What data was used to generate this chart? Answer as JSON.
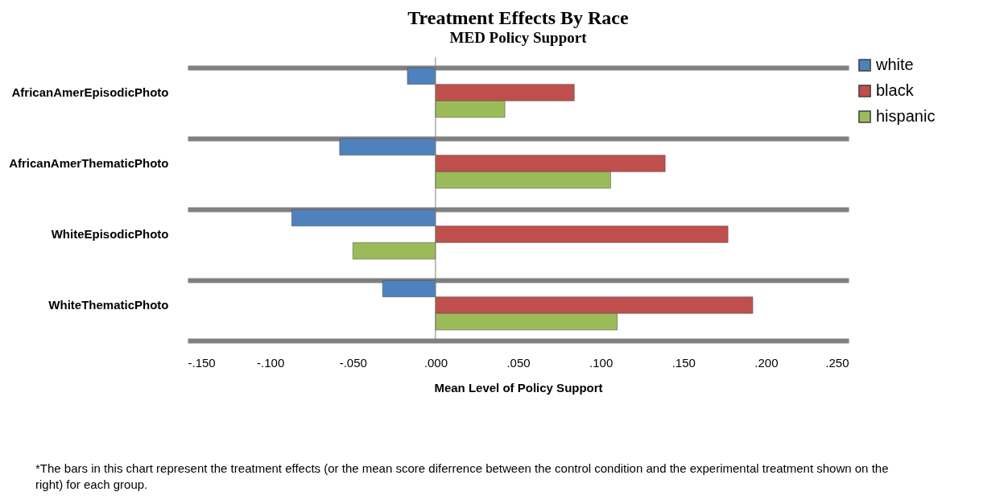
{
  "chart_data": {
    "type": "bar",
    "orientation": "horizontal",
    "title": "Treatment Effects By Race",
    "subtitle": "MED Policy Support",
    "xlabel": "Mean Level of Policy Support",
    "categories": [
      "AfricanAmerEpisodicPhoto",
      "AfricanAmerThematicPhoto",
      "WhiteEpisodicPhoto",
      "WhiteThematicPhoto"
    ],
    "series": [
      {
        "name": "white",
        "color": "#4f81bd",
        "values": [
          -0.017,
          -0.058,
          -0.087,
          -0.032
        ]
      },
      {
        "name": "black",
        "color": "#c0504d",
        "values": [
          0.084,
          0.139,
          0.177,
          0.192
        ]
      },
      {
        "name": "hispanic",
        "color": "#9bbb59",
        "values": [
          0.042,
          0.106,
          -0.05,
          0.11
        ]
      }
    ],
    "xlim": [
      -0.15,
      0.25
    ],
    "xticks": [
      {
        "value": -0.15,
        "label": "-.150"
      },
      {
        "value": -0.1,
        "label": "-.100"
      },
      {
        "value": -0.05,
        "label": "-.050"
      },
      {
        "value": 0,
        "label": ".000"
      },
      {
        "value": 0.05,
        "label": ".050"
      },
      {
        "value": 0.1,
        "label": ".100"
      },
      {
        "value": 0.15,
        "label": ".150"
      },
      {
        "value": 0.2,
        "label": ".200"
      },
      {
        "value": 0.25,
        "label": ".250"
      }
    ],
    "ref_lines": [
      {
        "axis": "x",
        "value": 0,
        "color": "#808080"
      }
    ],
    "grid": "y",
    "legend": "right",
    "annotations": [
      "*The bars in this chart represent the treatment effects  (or the mean score diferrence between the control condition and the experimental treatment shown on the right) for each group."
    ]
  }
}
